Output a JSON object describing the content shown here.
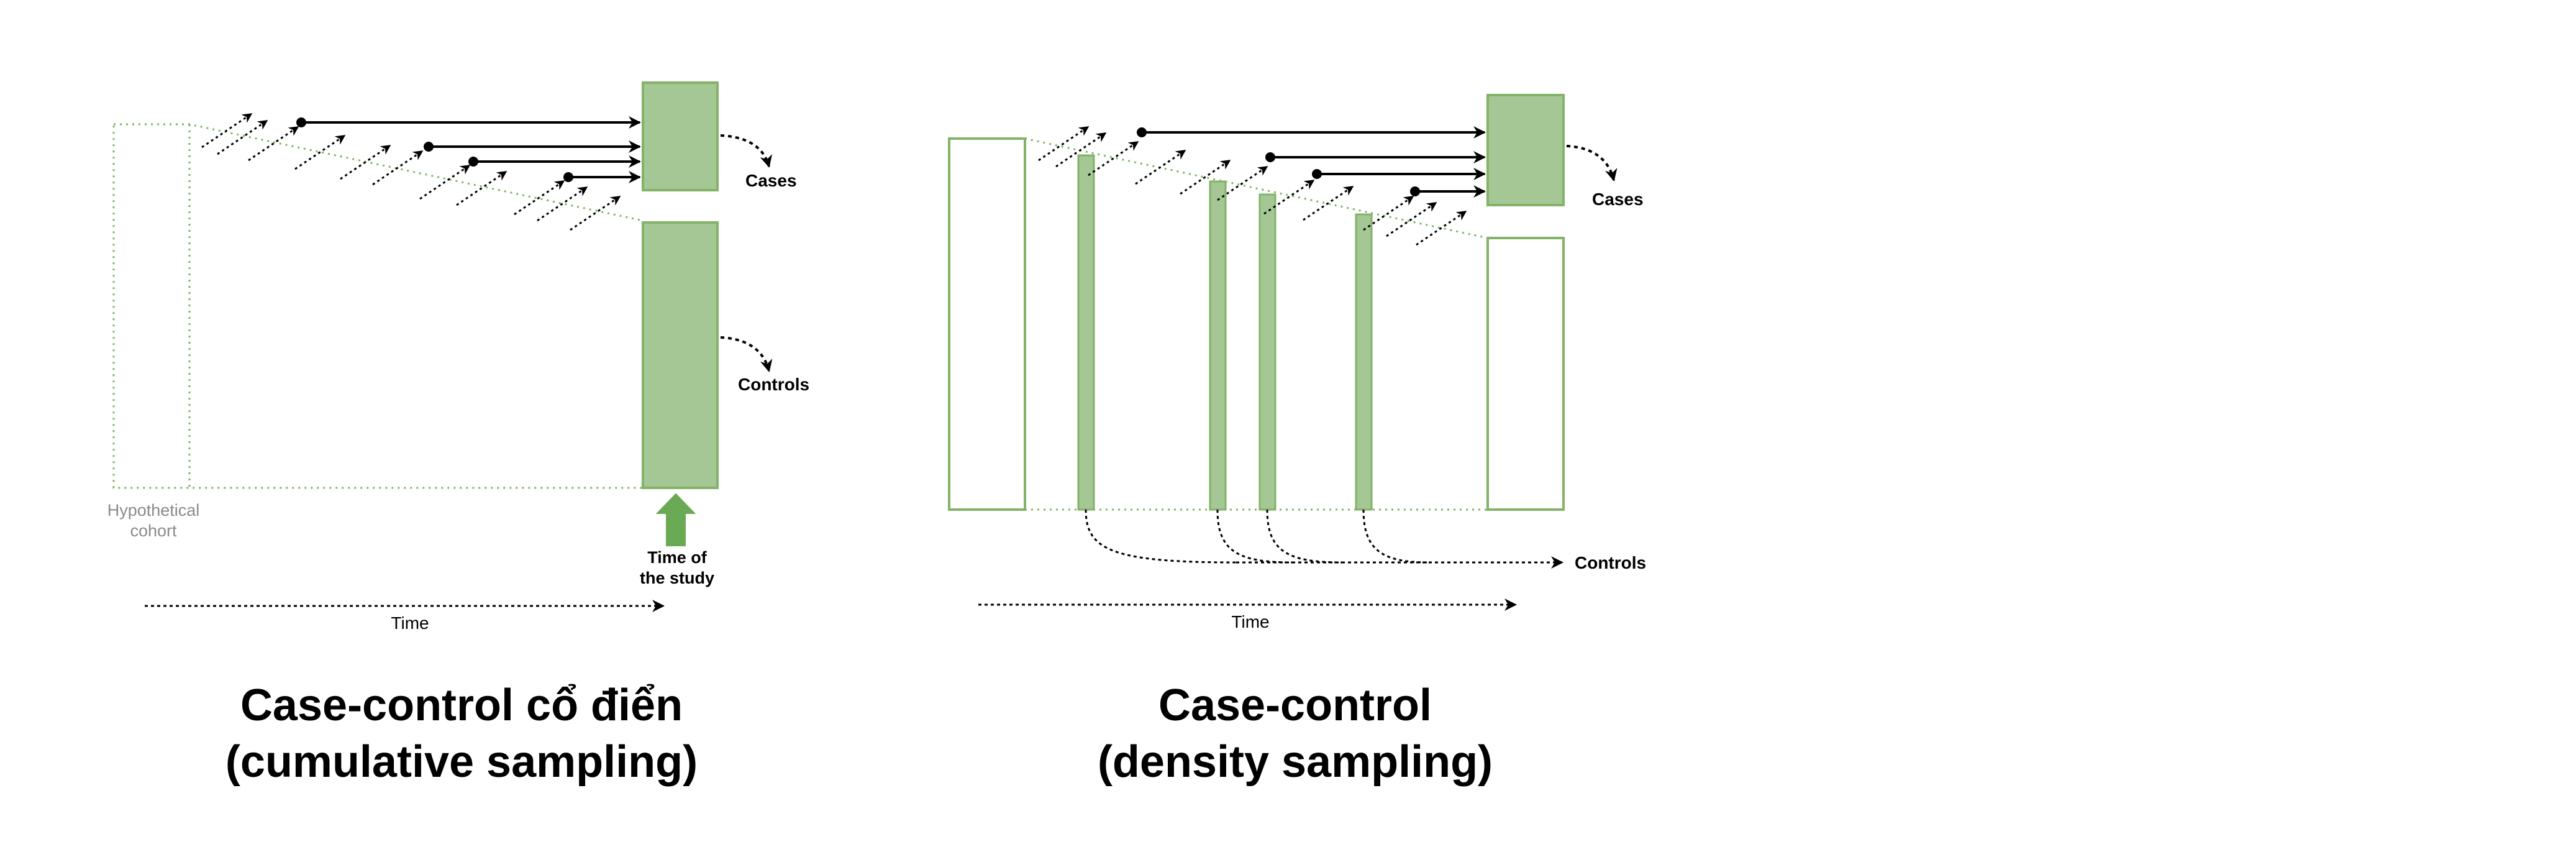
{
  "colors": {
    "box_fill": "#a5c796",
    "box_stroke": "#82b366",
    "up_arrow": "#6aaa55",
    "line": "#000000",
    "cohort_label": "#8a8a8a"
  },
  "left_diagram": {
    "cohort_label_line1": "Hypothetical",
    "cohort_label_line2": "cohort",
    "cases_label": "Cases",
    "controls_label": "Controls",
    "study_label_line1": "Time of",
    "study_label_line2": "the study",
    "time_label": "Time",
    "title_line1": "Case-control cổ điển",
    "title_line2": "(cumulative sampling)"
  },
  "right_diagram": {
    "cases_label": "Cases",
    "controls_label": "Controls",
    "time_label": "Time",
    "title_line1": "Case-control",
    "title_line2": "(density sampling)"
  },
  "icons": {
    "study_time_marker": "up-arrow-icon"
  }
}
